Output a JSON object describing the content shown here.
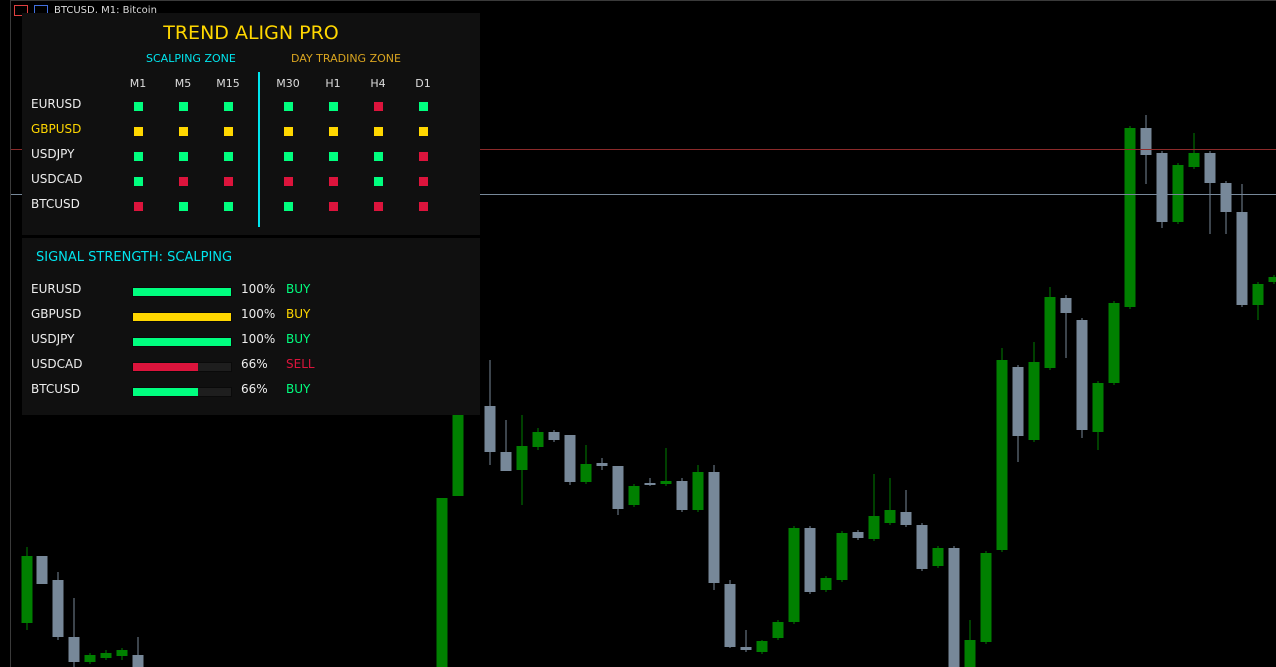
{
  "window": {
    "title": "BTCUSD, M1: Bitcoin"
  },
  "colors": {
    "green": "#00FF7F",
    "yellow": "#FFD700",
    "red": "#DC143C",
    "cyan": "#00E5EE",
    "orange": "#DAA520",
    "bull_candle": "#008000",
    "bear_candle": "#778899"
  },
  "dashboard": {
    "title": "TREND ALIGN PRO",
    "scalping_zone": "SCALPING ZONE",
    "day_trading_zone": "DAY TRADING ZONE",
    "timeframes": [
      "M1",
      "M5",
      "M15",
      "M30",
      "H1",
      "H4",
      "D1"
    ],
    "rows": [
      {
        "symbol": "EURUSD",
        "highlight": false,
        "states": [
          "green",
          "green",
          "green",
          "green",
          "green",
          "red",
          "green"
        ]
      },
      {
        "symbol": "GBPUSD",
        "highlight": true,
        "states": [
          "yellow",
          "yellow",
          "yellow",
          "yellow",
          "yellow",
          "yellow",
          "yellow"
        ]
      },
      {
        "symbol": "USDJPY",
        "highlight": false,
        "states": [
          "green",
          "green",
          "green",
          "green",
          "green",
          "green",
          "red"
        ]
      },
      {
        "symbol": "USDCAD",
        "highlight": false,
        "states": [
          "green",
          "red",
          "red",
          "red",
          "red",
          "green",
          "red"
        ]
      },
      {
        "symbol": "BTCUSD",
        "highlight": false,
        "states": [
          "red",
          "green",
          "green",
          "green",
          "red",
          "red",
          "red"
        ]
      }
    ]
  },
  "strength": {
    "title": "SIGNAL STRENGTH: SCALPING",
    "rows": [
      {
        "symbol": "EURUSD",
        "percent": 100,
        "percent_label": "100%",
        "signal": "BUY",
        "color": "green"
      },
      {
        "symbol": "GBPUSD",
        "percent": 100,
        "percent_label": "100%",
        "signal": "BUY",
        "color": "yellow"
      },
      {
        "symbol": "USDJPY",
        "percent": 100,
        "percent_label": "100%",
        "signal": "BUY",
        "color": "green"
      },
      {
        "symbol": "USDCAD",
        "percent": 66,
        "percent_label": "66%",
        "signal": "SELL",
        "color": "red"
      },
      {
        "symbol": "BTCUSD",
        "percent": 66,
        "percent_label": "66%",
        "signal": "BUY",
        "color": "green"
      }
    ]
  }
}
